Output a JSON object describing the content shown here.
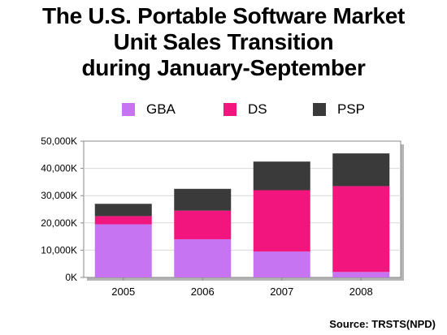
{
  "title": {
    "line1": "The U.S. Portable Software Market",
    "line2": "Unit Sales Transition",
    "line3": "during January-September"
  },
  "source": "Source: TRSTS(NPD)",
  "colors": {
    "GBA": "#c774f2",
    "DS": "#f2157e",
    "PSP": "#3a3a3a"
  },
  "chart_data": {
    "type": "bar",
    "stacked": true,
    "categories": [
      "2005",
      "2006",
      "2007",
      "2008"
    ],
    "series": [
      {
        "name": "GBA",
        "values": [
          19500,
          14000,
          9500,
          2000
        ]
      },
      {
        "name": "DS",
        "values": [
          3000,
          10500,
          22500,
          31500
        ]
      },
      {
        "name": "PSP",
        "values": [
          4500,
          8000,
          10500,
          12000
        ]
      }
    ],
    "ylim": [
      0,
      50000
    ],
    "yticks": [
      "0K",
      "10,000K",
      "20,000K",
      "30,000K",
      "40,000K",
      "50,000K"
    ],
    "title": "The U.S. Portable Software Market Unit Sales Transition during January-September",
    "xlabel": "",
    "ylabel": "",
    "legend": "top"
  }
}
